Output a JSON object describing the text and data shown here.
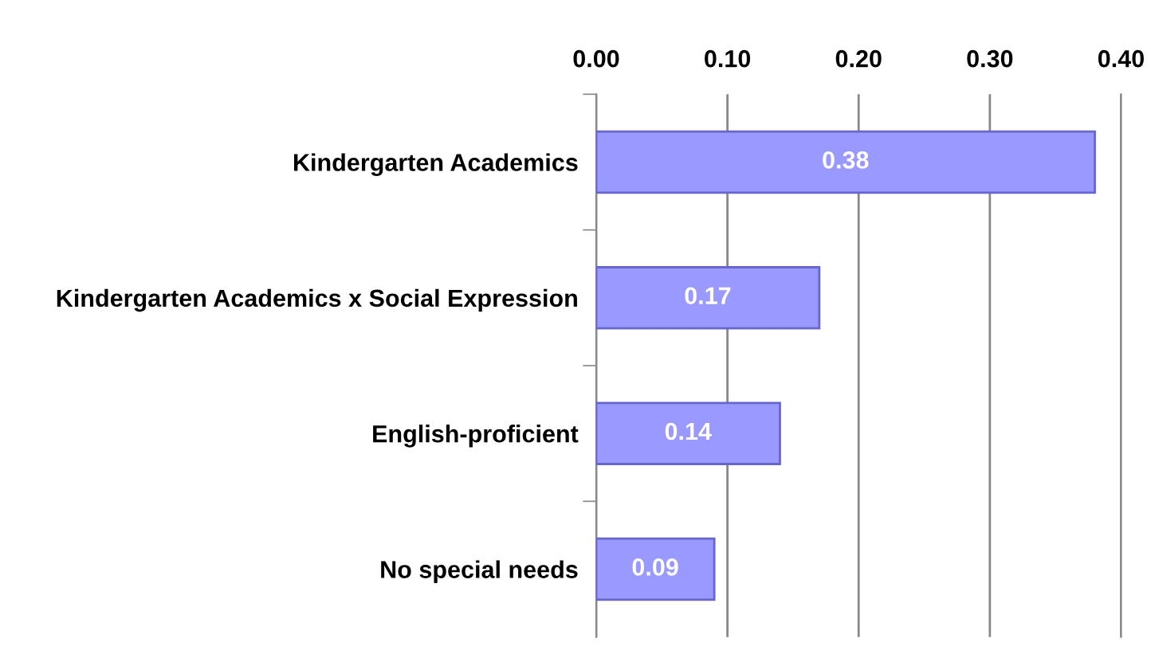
{
  "chart_data": {
    "type": "bar",
    "orientation": "horizontal",
    "categories": [
      "Kindergarten Academics",
      "Kindergarten Academics x Social Expression",
      "English-proficient",
      "No special needs"
    ],
    "values": [
      0.38,
      0.17,
      0.14,
      0.09
    ],
    "color": "#9999ff",
    "data_labels": true,
    "xlim": [
      0,
      0.4
    ],
    "xticks": [
      {
        "value": 0,
        "label": "0.00"
      },
      {
        "value": 0.1,
        "label": "0.10"
      },
      {
        "value": 0.2,
        "label": "0.20"
      },
      {
        "value": 0.3,
        "label": "0.30"
      },
      {
        "value": 0.4,
        "label": "0.40"
      }
    ],
    "grid": "x"
  }
}
